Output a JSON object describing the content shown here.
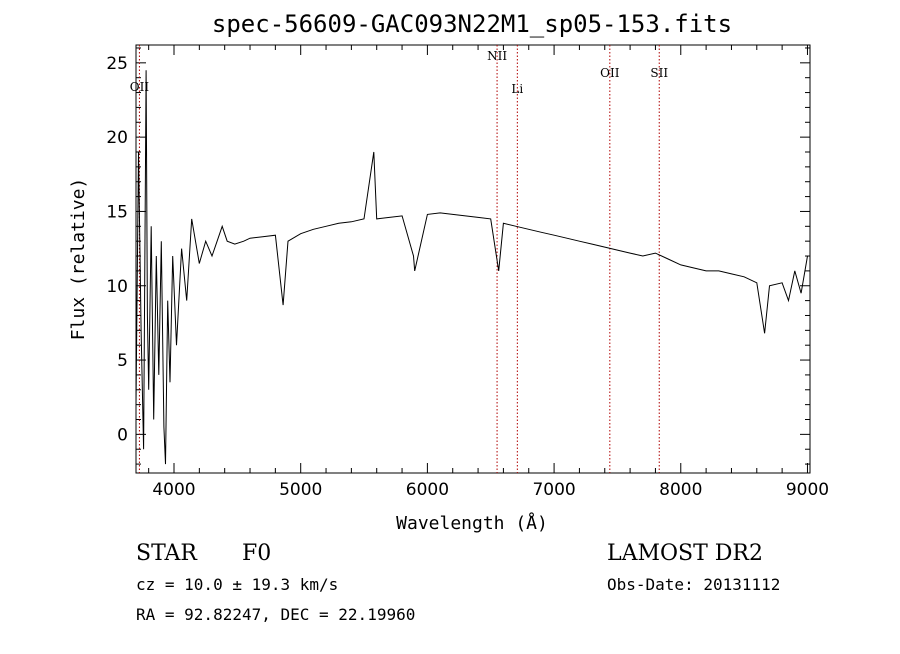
{
  "chart_data": {
    "type": "line",
    "title": "spec-56609-GAC093N22M1_sp05-153.fits",
    "xlabel": "Wavelength (Å)",
    "ylabel": "Flux (relative)",
    "xlim": [
      3700,
      9020
    ],
    "ylim": [
      -2.6,
      26.2
    ],
    "xticks": [
      4000,
      5000,
      6000,
      7000,
      8000,
      9000
    ],
    "yticks": [
      0,
      5,
      10,
      15,
      20,
      25
    ],
    "grid": false,
    "series": [
      {
        "x": [
          3700,
          3720,
          3740,
          3760,
          3780,
          3790,
          3800,
          3820,
          3840,
          3860,
          3880,
          3900,
          3920,
          3933,
          3950,
          3968,
          3990,
          4020,
          4060,
          4100,
          4140,
          4200,
          4250,
          4300,
          4340,
          4380,
          4420,
          4480,
          4550,
          4600,
          4700,
          4800,
          4861,
          4900,
          5000,
          5100,
          5200,
          5300,
          5400,
          5500,
          5577,
          5600,
          5700,
          5800,
          5890,
          5900,
          6000,
          6100,
          6200,
          6300,
          6400,
          6500,
          6563,
          6600,
          6700,
          6800,
          6900,
          7000,
          7100,
          7200,
          7300,
          7400,
          7500,
          7600,
          7700,
          7800,
          7900,
          8000,
          8100,
          8200,
          8300,
          8400,
          8500,
          8600,
          8662,
          8700,
          8800,
          8850,
          8900,
          8950,
          9000
        ],
        "y": [
          2.0,
          19.0,
          7.0,
          -1.0,
          24.5,
          8.0,
          3.0,
          14.0,
          1.0,
          12.0,
          4.0,
          13.0,
          0.5,
          -2.0,
          9.0,
          3.5,
          12.0,
          6.0,
          12.5,
          9.0,
          14.5,
          11.5,
          13.0,
          12.0,
          13.0,
          14.0,
          13.0,
          12.8,
          13.0,
          13.2,
          13.3,
          13.4,
          8.7,
          13.0,
          13.5,
          13.8,
          14.0,
          14.2,
          14.3,
          14.5,
          19.0,
          14.5,
          14.6,
          14.7,
          12.0,
          11.0,
          14.8,
          14.9,
          14.8,
          14.7,
          14.6,
          14.5,
          11.0,
          14.2,
          14.0,
          13.8,
          13.6,
          13.4,
          13.2,
          13.0,
          12.8,
          12.6,
          12.4,
          12.2,
          12.0,
          12.2,
          11.8,
          11.4,
          11.2,
          11.0,
          11.0,
          10.8,
          10.6,
          10.2,
          6.8,
          10.0,
          10.2,
          9.0,
          11.0,
          9.5,
          12.0
        ]
      }
    ],
    "annotations": [
      {
        "label": "OII",
        "x": 3727
      },
      {
        "label": "NII",
        "x": 6550
      },
      {
        "label": "Li",
        "x": 6710
      },
      {
        "label": "OII",
        "x": 7440
      },
      {
        "label": "SII",
        "x": 7830
      }
    ]
  },
  "info": {
    "star_label": "STAR",
    "class_label": "F0",
    "survey_label": "LAMOST DR2",
    "cz_line": "cz = 10.0 ± 19.3 km/s",
    "obsdate_line": "Obs-Date: 20131112",
    "radec_line": "RA =  92.82247, DEC =  22.19960"
  }
}
